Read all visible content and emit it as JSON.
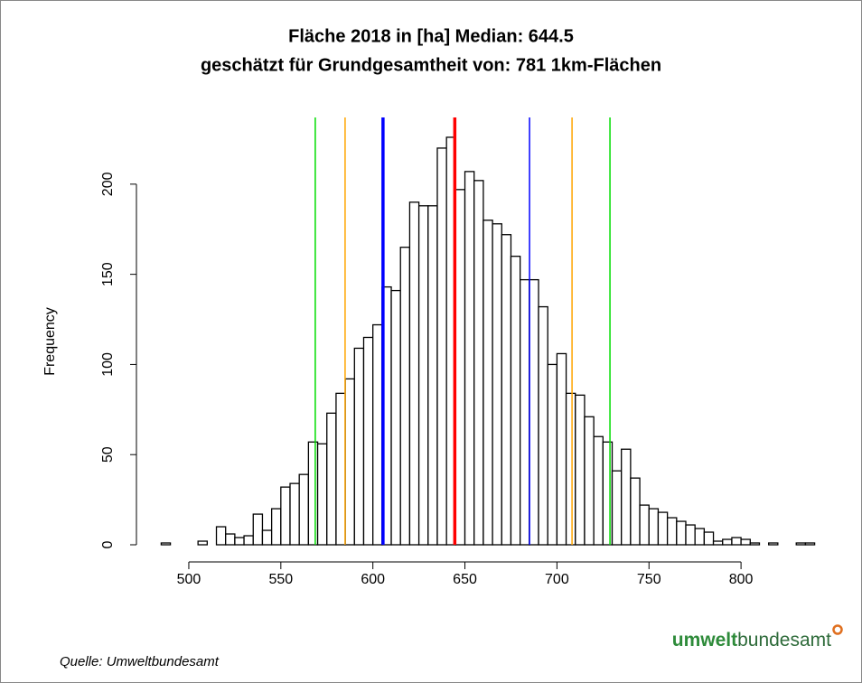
{
  "chart_data": {
    "type": "histogram",
    "title": [
      "Fläche 2018 in [ha] Median: 644.5",
      "geschätzt für Grundgesamtheit von: 781 1km-Flächen"
    ],
    "ylabel": "Frequency",
    "bins": [
      485,
      490,
      495,
      500,
      505,
      510,
      515,
      520,
      525,
      530,
      535,
      540,
      545,
      550,
      555,
      560,
      565,
      570,
      575,
      580,
      585,
      590,
      595,
      600,
      605,
      610,
      615,
      620,
      625,
      630,
      635,
      640,
      645,
      650,
      655,
      660,
      665,
      670,
      675,
      680,
      685,
      690,
      695,
      700,
      705,
      710,
      715,
      720,
      725,
      730,
      735,
      740,
      745,
      750,
      755,
      760,
      765,
      770,
      775,
      780,
      785,
      790,
      795,
      800,
      805,
      810,
      815,
      820,
      825,
      830,
      835,
      840
    ],
    "values": [
      1,
      0,
      0,
      0,
      2,
      0,
      10,
      6,
      4,
      5,
      17,
      8,
      20,
      32,
      34,
      39,
      57,
      56,
      73,
      84,
      92,
      109,
      115,
      122,
      143,
      141,
      165,
      190,
      188,
      188,
      220,
      226,
      197,
      207,
      202,
      180,
      178,
      172,
      160,
      147,
      147,
      132,
      100,
      106,
      84,
      83,
      71,
      60,
      57,
      41,
      53,
      37,
      22,
      20,
      18,
      15,
      13,
      11,
      9,
      7,
      2,
      3,
      4,
      3,
      1,
      0,
      1,
      0,
      0,
      1,
      1
    ],
    "color": "#ffffff",
    "xlim": [
      485,
      840
    ],
    "ylim": [
      0,
      237
    ],
    "xticks": [
      500,
      550,
      600,
      650,
      700,
      750,
      800
    ],
    "yticks": [
      0,
      50,
      100,
      150,
      200
    ],
    "vlines": [
      {
        "value": 568.7,
        "color": "#00dd00",
        "width": 1.5
      },
      {
        "value": 728.8,
        "color": "#00dd00",
        "width": 1.5
      },
      {
        "value": 584.9,
        "color": "#ffa500",
        "width": 1.5
      },
      {
        "value": 708.2,
        "color": "#ffa500",
        "width": 1.5
      },
      {
        "value": 605.5,
        "color": "#0000ff",
        "width": 3.5
      },
      {
        "value": 685.1,
        "color": "#0000ff",
        "width": 1.5
      },
      {
        "value": 644.5,
        "color": "#ff0000",
        "width": 3.5
      }
    ]
  },
  "footer": {
    "source": "Quelle: Umweltbundesamt",
    "logo": [
      "umwelt",
      "bundesamt"
    ]
  }
}
